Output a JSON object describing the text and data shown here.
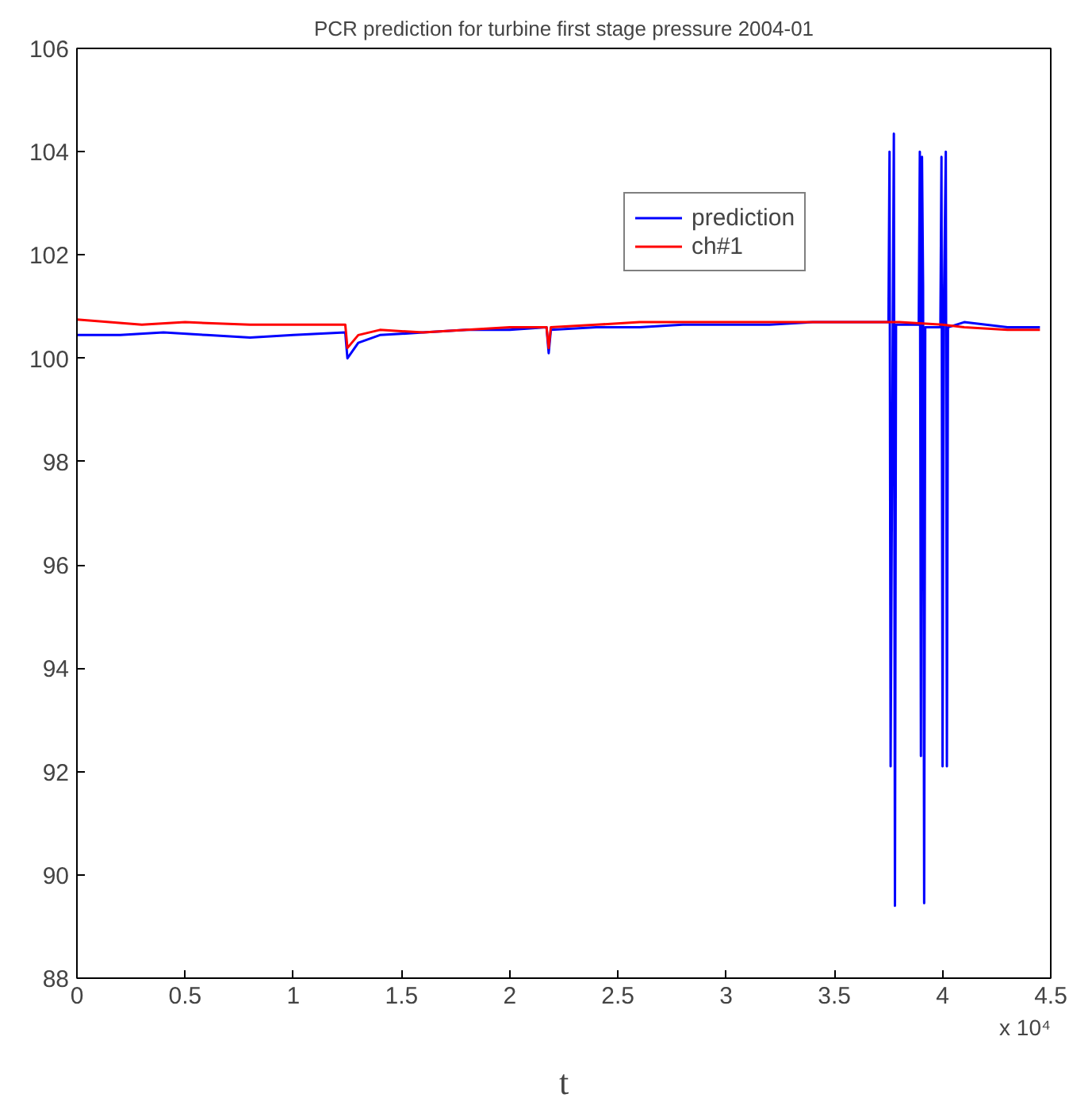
{
  "chart_data": {
    "type": "line",
    "title": "PCR prediction for turbine first stage pressure 2004-01",
    "xlabel": "t",
    "xlim": [
      0,
      4.5
    ],
    "ylim": [
      88,
      106
    ],
    "xticks": [
      0,
      0.5,
      1,
      1.5,
      2,
      2.5,
      3,
      3.5,
      4,
      4.5
    ],
    "yticks": [
      88,
      90,
      92,
      94,
      96,
      98,
      100,
      102,
      104,
      106
    ],
    "annotations": [
      "x 10⁴"
    ],
    "grid": false,
    "legend": "top right",
    "marker": "none",
    "line_style": "solid",
    "series": [
      {
        "name": "prediction",
        "color": "#0000ff",
        "x": [
          0,
          0.2,
          0.4,
          0.6,
          0.8,
          1.0,
          1.24,
          1.25,
          1.3,
          1.4,
          1.6,
          1.8,
          2.0,
          2.17,
          2.18,
          2.19,
          2.4,
          2.6,
          2.8,
          3.0,
          3.2,
          3.4,
          3.6,
          3.75,
          3.755,
          3.76,
          3.765,
          3.77,
          3.775,
          3.78,
          3.785,
          3.89,
          3.895,
          3.9,
          3.905,
          3.91,
          3.915,
          3.92,
          3.99,
          3.995,
          4.0,
          4.005,
          4.015,
          4.02,
          4.025,
          4.1,
          4.3,
          4.45
        ],
        "values": [
          100.45,
          100.45,
          100.5,
          100.45,
          100.4,
          100.45,
          100.5,
          100.0,
          100.3,
          100.45,
          100.5,
          100.55,
          100.55,
          100.6,
          100.1,
          100.55,
          100.6,
          100.6,
          100.65,
          100.65,
          100.65,
          100.7,
          100.7,
          100.7,
          104.0,
          92.1,
          96.5,
          100.7,
          104.35,
          89.4,
          100.65,
          100.65,
          104.0,
          92.3,
          103.9,
          101.4,
          89.45,
          100.6,
          100.6,
          103.9,
          92.1,
          100.6,
          104.0,
          92.1,
          100.6,
          100.7,
          100.6,
          100.6
        ]
      },
      {
        "name": "ch#1",
        "color": "#ff0000",
        "x": [
          0,
          0.3,
          0.5,
          0.8,
          1.0,
          1.24,
          1.25,
          1.3,
          1.4,
          1.6,
          1.8,
          2.0,
          2.17,
          2.18,
          2.19,
          2.4,
          2.6,
          2.8,
          3.0,
          3.2,
          3.4,
          3.6,
          3.8,
          4.0,
          4.1,
          4.3,
          4.45
        ],
        "values": [
          100.75,
          100.65,
          100.7,
          100.65,
          100.65,
          100.65,
          100.2,
          100.45,
          100.55,
          100.5,
          100.55,
          100.6,
          100.6,
          100.2,
          100.6,
          100.65,
          100.7,
          100.7,
          100.7,
          100.7,
          100.7,
          100.7,
          100.7,
          100.65,
          100.6,
          100.55,
          100.55
        ]
      }
    ]
  }
}
